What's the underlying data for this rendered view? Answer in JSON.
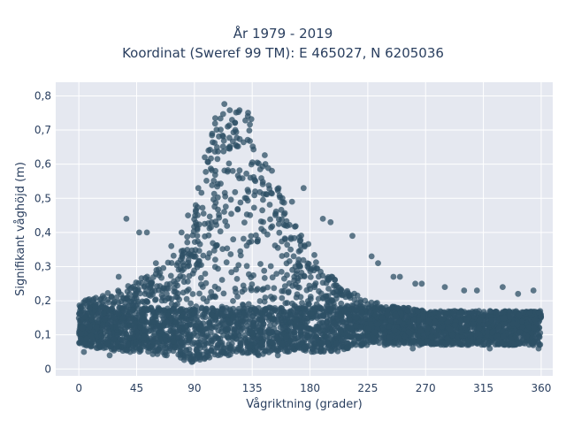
{
  "chart_data": {
    "type": "scatter",
    "title_line_1": "År 1979 - 2019",
    "title_line_2": "Koordinat (Sweref 99 TM): E 465027, N 6205036",
    "xlabel": "Vågriktning (grader)",
    "ylabel": "Signifikant våghöjd (m)",
    "xlim": [
      -18,
      369
    ],
    "ylim": [
      -0.02,
      0.84
    ],
    "x_ticks": [
      0,
      45,
      90,
      135,
      180,
      225,
      270,
      315,
      360
    ],
    "x_tick_labels": [
      "0",
      "45",
      "90",
      "135",
      "180",
      "225",
      "270",
      "315",
      "360"
    ],
    "y_ticks": [
      0,
      0.1,
      0.2,
      0.3,
      0.4,
      0.5,
      0.6,
      0.7,
      0.8
    ],
    "y_tick_labels": [
      "0",
      "0,1",
      "0,2",
      "0,3",
      "0,4",
      "0,5",
      "0,6",
      "0,7",
      "0,8"
    ],
    "grid": true,
    "marker_color": "#2e5066",
    "plot_bg": "#e5e8f0",
    "series": [
      {
        "envelope": {
          "direction": [
            0,
            10,
            20,
            30,
            40,
            50,
            60,
            70,
            80,
            85,
            90,
            95,
            100,
            105,
            108,
            112,
            118,
            125,
            132,
            140,
            150,
            160,
            170,
            180,
            190,
            200,
            210,
            225,
            240,
            255,
            270,
            285,
            300,
            315,
            330,
            345,
            360
          ],
          "height_min": [
            0.07,
            0.06,
            0.06,
            0.05,
            0.05,
            0.05,
            0.04,
            0.04,
            0.03,
            0.02,
            0.02,
            0.02,
            0.03,
            0.03,
            0.04,
            0.04,
            0.04,
            0.04,
            0.04,
            0.04,
            0.05,
            0.05,
            0.05,
            0.05,
            0.05,
            0.05,
            0.06,
            0.07,
            0.07,
            0.07,
            0.07,
            0.07,
            0.07,
            0.07,
            0.07,
            0.07,
            0.07
          ],
          "height_max_dense": [
            0.2,
            0.21,
            0.22,
            0.23,
            0.25,
            0.27,
            0.29,
            0.32,
            0.36,
            0.4,
            0.45,
            0.52,
            0.62,
            0.72,
            0.78,
            0.8,
            0.79,
            0.78,
            0.75,
            0.69,
            0.6,
            0.5,
            0.42,
            0.36,
            0.3,
            0.26,
            0.23,
            0.2,
            0.19,
            0.18,
            0.17,
            0.17,
            0.17,
            0.17,
            0.17,
            0.17,
            0.17
          ]
        },
        "outliers": [
          [
            37,
            0.44
          ],
          [
            47,
            0.4
          ],
          [
            53,
            0.4
          ],
          [
            85,
            0.45
          ],
          [
            91,
            0.48
          ],
          [
            93,
            0.53
          ],
          [
            98,
            0.62
          ],
          [
            101,
            0.64
          ],
          [
            166,
            0.49
          ],
          [
            175,
            0.53
          ],
          [
            190,
            0.44
          ],
          [
            196,
            0.43
          ],
          [
            213,
            0.39
          ],
          [
            228,
            0.33
          ],
          [
            233,
            0.31
          ],
          [
            245,
            0.27
          ],
          [
            250,
            0.27
          ],
          [
            262,
            0.25
          ],
          [
            267,
            0.25
          ],
          [
            285,
            0.24
          ],
          [
            300,
            0.23
          ],
          [
            310,
            0.23
          ],
          [
            330,
            0.24
          ],
          [
            342,
            0.22
          ],
          [
            354,
            0.23
          ],
          [
            31,
            0.27
          ],
          [
            60,
            0.31
          ],
          [
            72,
            0.36
          ],
          [
            80,
            0.4
          ]
        ],
        "low_outliers": [
          [
            4,
            0.05
          ],
          [
            24,
            0.04
          ],
          [
            40,
            0.05
          ],
          [
            155,
            0.04
          ],
          [
            260,
            0.06
          ],
          [
            320,
            0.06
          ],
          [
            358,
            0.06
          ]
        ]
      }
    ]
  }
}
